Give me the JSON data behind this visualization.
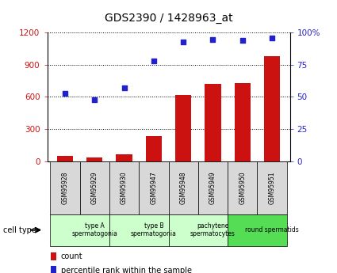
{
  "title": "GDS2390 / 1428963_at",
  "samples": [
    "GSM95928",
    "GSM95929",
    "GSM95930",
    "GSM95947",
    "GSM95948",
    "GSM95949",
    "GSM95950",
    "GSM95951"
  ],
  "counts": [
    50,
    30,
    65,
    230,
    620,
    720,
    730,
    980
  ],
  "percentiles": [
    53,
    48,
    57,
    78,
    93,
    95,
    94,
    96
  ],
  "ylim_left": [
    0,
    1200
  ],
  "ylim_right": [
    0,
    100
  ],
  "yticks_left": [
    0,
    300,
    600,
    900,
    1200
  ],
  "ytick_labels_left": [
    "0",
    "300",
    "600",
    "900",
    "1200"
  ],
  "yticks_right": [
    0,
    25,
    50,
    75,
    100
  ],
  "ytick_labels_right": [
    "0",
    "25",
    "50",
    "75",
    "100%"
  ],
  "bar_color": "#cc1111",
  "dot_color": "#2222cc",
  "groups": [
    {
      "label": "type A\nspermatogonia",
      "start": 0,
      "end": 2,
      "color": "#ccffcc"
    },
    {
      "label": "type B\nspermatogonia",
      "start": 2,
      "end": 4,
      "color": "#ccffcc"
    },
    {
      "label": "pachytene\nspermatocytes",
      "start": 4,
      "end": 6,
      "color": "#ccffcc"
    },
    {
      "label": "round spermatids",
      "start": 6,
      "end": 8,
      "color": "#55dd55"
    }
  ],
  "cell_type_label": "cell type",
  "legend_count": "count",
  "legend_pct": "percentile rank within the sample",
  "tick_label_color_left": "#cc1111",
  "tick_label_color_right": "#2222cc"
}
